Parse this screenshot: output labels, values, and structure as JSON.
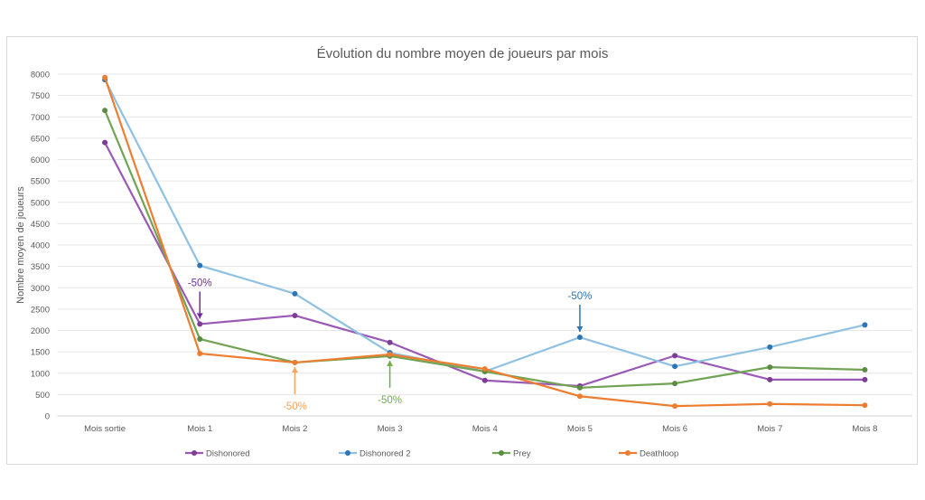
{
  "chart_data": {
    "type": "line",
    "title": "Évolution du nombre moyen de joueurs par mois",
    "xlabel": "",
    "ylabel": "Nombre moyen de joueurs",
    "ylim": [
      0,
      8000
    ],
    "yticks": [
      0,
      500,
      1000,
      1500,
      2000,
      2500,
      3000,
      3500,
      4000,
      4500,
      5000,
      5500,
      6000,
      6500,
      7000,
      7500,
      8000
    ],
    "grid": true,
    "legend_position": "bottom",
    "categories": [
      "Mois sortie",
      "Mois 1",
      "Mois 2",
      "Mois 3",
      "Mois 4",
      "Mois 5",
      "Mois 6",
      "Mois 7",
      "Mois 8"
    ],
    "series": [
      {
        "name": "Dishonored",
        "color": "#9b59b6",
        "marker_color": "#7d3c98",
        "values": [
          6400,
          2150,
          2350,
          1720,
          830,
          700,
          1410,
          850,
          850
        ]
      },
      {
        "name": "Dishonored 2",
        "color": "#8fc1e3",
        "marker_color": "#2e75b6",
        "values": [
          7870,
          3520,
          2860,
          1480,
          1040,
          1840,
          1160,
          1610,
          2130
        ]
      },
      {
        "name": "Prey",
        "color": "#70a353",
        "marker_color": "#5b8c41",
        "values": [
          7150,
          1800,
          1250,
          1400,
          1040,
          660,
          760,
          1140,
          1080
        ]
      },
      {
        "name": "Deathloop",
        "color": "#ed7d31",
        "marker_color": "#ed7d31",
        "values": [
          7920,
          1460,
          1250,
          1440,
          1100,
          460,
          230,
          280,
          250
        ]
      }
    ],
    "annotations": [
      {
        "text": "-50%",
        "category": "Mois 1",
        "series": "Dishonored",
        "color": "#7030a0",
        "direction": "down"
      },
      {
        "text": "-50%",
        "category": "Mois 2",
        "series": "Deathloop",
        "color": "#f4a460",
        "direction": "up"
      },
      {
        "text": "-50%",
        "category": "Mois 3",
        "series": "Prey",
        "color": "#70ad47",
        "direction": "up"
      },
      {
        "text": "-50%",
        "category": "Mois 5",
        "series": "Dishonored 2",
        "color": "#2e75b6",
        "direction": "down"
      }
    ]
  }
}
